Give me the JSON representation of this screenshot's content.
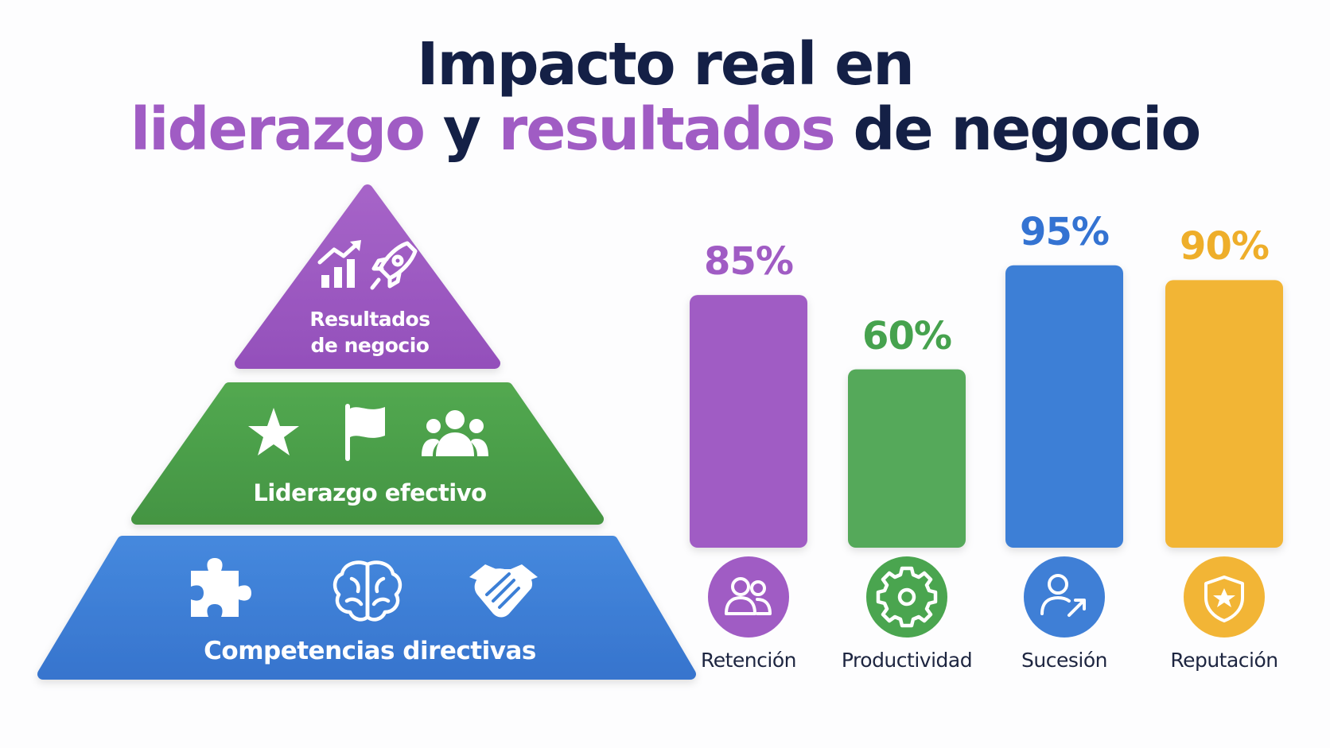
{
  "title": {
    "line1": "Impacto real en",
    "line2_part1": "liderazgo",
    "line2_part2": " y ",
    "line2_part3": "resultados",
    "line2_part4": " de negocio"
  },
  "pyramid": {
    "levels": [
      {
        "label_line1": "Resultados",
        "label_line2": "de negocio",
        "color": "#9b59c0",
        "icons": [
          "growth-chart-icon",
          "rocket-icon"
        ]
      },
      {
        "label": "Liderazgo efectivo",
        "color": "#4a9e48",
        "icons": [
          "star-icon",
          "flag-icon",
          "team-icon"
        ]
      },
      {
        "label": "Competencias directivas",
        "color": "#3c7fd6",
        "icons": [
          "puzzle-icon",
          "brain-icon",
          "handshake-icon"
        ]
      }
    ]
  },
  "chart_data": {
    "type": "bar",
    "categories": [
      "Retención",
      "Productividad",
      "Sucesión",
      "Reputación"
    ],
    "values": [
      85,
      60,
      95,
      90
    ],
    "value_labels": [
      "85%",
      "60%",
      "95%",
      "90%"
    ],
    "colors": [
      "#a05cc4",
      "#54a95a",
      "#3d7fd6",
      "#f2b536"
    ],
    "label_colors": [
      "#a05cc4",
      "#46a24e",
      "#3473d2",
      "#eeae2a"
    ],
    "icons": [
      "people-icon",
      "gear-icon",
      "user-arrow-icon",
      "shield-star-icon"
    ],
    "ylim": [
      0,
      100
    ],
    "grid": false,
    "title": "",
    "xlabel": "",
    "ylabel": ""
  }
}
